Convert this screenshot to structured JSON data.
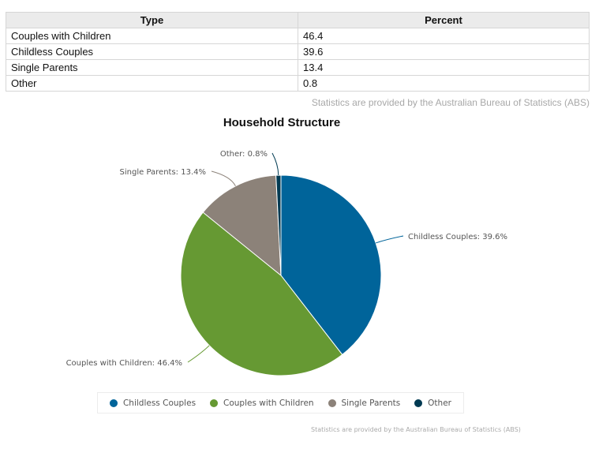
{
  "table": {
    "headers": [
      "Type",
      "Percent"
    ],
    "rows": [
      {
        "type": "Couples with Children",
        "percent": "46.4"
      },
      {
        "type": "Childless Couples",
        "percent": "39.6"
      },
      {
        "type": "Single Parents",
        "percent": "13.4"
      },
      {
        "type": "Other",
        "percent": "0.8"
      }
    ]
  },
  "source_note": "Statistics are provided by the Australian Bureau of Statistics (ABS)",
  "chart_data": {
    "type": "pie",
    "title": "Household Structure",
    "slices": [
      {
        "name": "Childless Couples",
        "value": 39.6,
        "label": "Childless Couples: 39.6%",
        "color": "#00649a"
      },
      {
        "name": "Couples with Children",
        "value": 46.4,
        "label": "Couples with Children: 46.4%",
        "color": "#669933"
      },
      {
        "name": "Single Parents",
        "value": 13.4,
        "label": "Single Parents: 13.4%",
        "color": "#8c8279"
      },
      {
        "name": "Other",
        "value": 0.8,
        "label": "Other: 0.8%",
        "color": "#003a52"
      }
    ],
    "legend": {
      "placement": "bottom",
      "entries": [
        "Childless Couples",
        "Couples with Children",
        "Single Parents",
        "Other"
      ]
    },
    "credit": "Statistics are provided by the Australian Bureau of Statistics (ABS)"
  }
}
